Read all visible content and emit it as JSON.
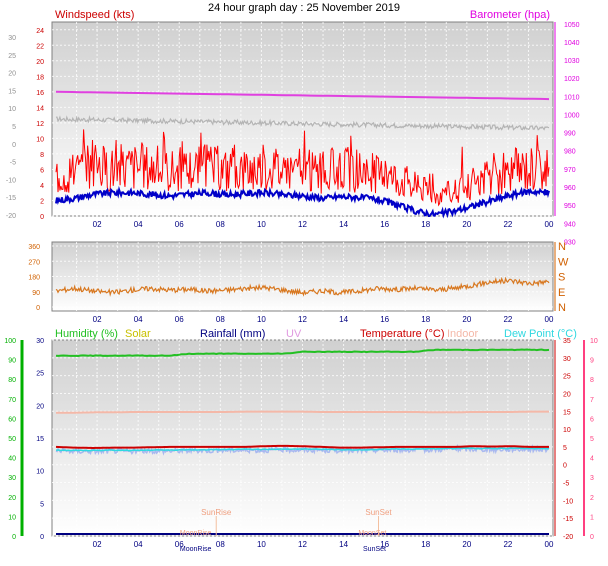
{
  "page_title": "24 hour graph day : 25 November 2019",
  "colors": {
    "windspeed": "#ff0000",
    "gust": "#ff0000",
    "avg_wind": "#0000c8",
    "barometer": "#e040e0",
    "temp_grey": "#b4b4b4",
    "winddir": "#d87820",
    "humidity": "#22c022",
    "solar": "#c8c000",
    "rainfall": "#000080",
    "uv": "#e09ae0",
    "temperature": "#cc0000",
    "indoor": "#f4b8a8",
    "dewpoint": "#30d8e0",
    "dew_band": "#a8b8f0",
    "left_axis_red": "#cc0000",
    "left_axis_green": "#00b000",
    "right_axis_magenta": "#e000e0",
    "right_axis_pink": "#ff4080",
    "dir_axis": "#d06000",
    "plot_bg": "#dcdcdc"
  },
  "chart_data": [
    {
      "type": "line",
      "title": "Windspeed (kts)",
      "right_title": "Barometer (hpa)",
      "x_ticks": [
        "02",
        "04",
        "06",
        "08",
        "10",
        "12",
        "14",
        "16",
        "18",
        "20",
        "22",
        "00"
      ],
      "left_outer_ticks": [
        "30",
        "25",
        "20",
        "15",
        "10",
        "5",
        "0",
        "-5",
        "-10",
        "-15",
        "-20"
      ],
      "left_inner_ticks": [
        "24",
        "22",
        "20",
        "18",
        "16",
        "14",
        "12",
        "10",
        "8",
        "6",
        "4",
        "2",
        "0"
      ],
      "right_ticks": [
        "1050",
        "1040",
        "1030",
        "1020",
        "1010",
        "1000",
        "990",
        "980",
        "970",
        "960",
        "950",
        "940",
        "930"
      ],
      "ylim_wind": [
        0,
        25
      ],
      "ylim_baro": [
        944,
        1051
      ],
      "series": [
        {
          "key": "gust",
          "values": [
            6,
            6.5,
            7,
            6.8,
            7.2,
            7,
            6.5,
            6.8,
            7,
            6.6,
            6.8,
            7,
            6.9,
            6.5,
            6.2,
            6.8,
            6.5,
            6,
            5.5,
            4.5,
            3,
            3.5,
            4.5,
            5.5,
            6.5,
            7,
            6.5
          ]
        },
        {
          "key": "wind",
          "values": [
            2,
            2.3,
            2.8,
            3,
            3,
            2.8,
            2.6,
            2.8,
            3,
            2.7,
            2.9,
            3,
            2.7,
            2.6,
            2.3,
            2.5,
            2.4,
            2.1,
            1.4,
            0.6,
            0.2,
            0.6,
            1.3,
            2,
            2.7,
            3.2,
            3
          ]
        },
        {
          "key": "baro",
          "x": [
            0,
            24
          ],
          "values": [
            1012.5,
            1008.5
          ]
        },
        {
          "key": "grey",
          "values": [
            -2.5,
            -2.3,
            -2.4,
            -2.5,
            -2.6,
            -2.7,
            -2.6,
            -2.8,
            -2.7,
            -2.7,
            -2.8,
            -2.8,
            -2.7,
            -2.8,
            -2.7,
            -2.6,
            -2.6,
            -2.5,
            -2.5,
            -2.4,
            -2.6,
            -2.9,
            -3.0,
            -3.1,
            -3.2,
            -3.3,
            -3.3
          ]
        }
      ]
    },
    {
      "type": "line",
      "title": "",
      "x_ticks": [
        "02",
        "04",
        "06",
        "08",
        "10",
        "12",
        "14",
        "16",
        "18",
        "20",
        "22",
        "00"
      ],
      "left_ticks": [
        "360",
        "270",
        "180",
        "90",
        "0"
      ],
      "right_ticks": [
        "N",
        "W",
        "S",
        "E",
        "N"
      ],
      "ylim": [
        0,
        360
      ],
      "series": [
        {
          "key": "winddir",
          "values": [
            95,
            110,
            95,
            85,
            100,
            110,
            100,
            105,
            95,
            100,
            110,
            115,
            100,
            85,
            95,
            85,
            95,
            110,
            105,
            110,
            100,
            110,
            130,
            150,
            155,
            140,
            150
          ]
        }
      ]
    },
    {
      "type": "line",
      "legend": [
        "Humidity (%)",
        "Solar",
        "Rainfall (mm)",
        "UV",
        "Temperature (°C)",
        "Indoor",
        "Dew Point (°C)"
      ],
      "x_ticks": [
        "02",
        "04",
        "06",
        "08",
        "10",
        "12",
        "14",
        "16",
        "18",
        "20",
        "22",
        "00"
      ],
      "left_ticks_green": [
        "100",
        "90",
        "80",
        "70",
        "60",
        "50",
        "40",
        "30",
        "20",
        "10",
        "0"
      ],
      "left_ticks_blue": [
        "30",
        "25",
        "20",
        "15",
        "10",
        "5",
        "0"
      ],
      "right_ticks_temp": [
        "35",
        "30",
        "25",
        "20",
        "15",
        "10",
        "5",
        "0",
        "-5",
        "-10",
        "-15",
        "-20"
      ],
      "right_ticks_uv": [
        "10",
        "9",
        "8",
        "7",
        "6",
        "5",
        "4",
        "3",
        "2",
        "1",
        "0"
      ],
      "ylim_temp": [
        -20,
        35
      ],
      "series": [
        {
          "key": "humidity",
          "values": [
            92,
            92,
            92,
            92,
            92,
            92,
            92,
            93,
            93,
            93,
            93,
            93,
            93,
            94,
            94,
            94,
            94,
            94,
            94,
            94,
            95,
            95,
            95,
            95,
            95,
            95,
            95
          ]
        },
        {
          "key": "temperature",
          "values": [
            5,
            4.8,
            4.7,
            4.8,
            4.8,
            4.9,
            5,
            5,
            5,
            5,
            5,
            5.2,
            5.3,
            5.2,
            5,
            4.8,
            4.8,
            4.9,
            5,
            5,
            5,
            5,
            5.2,
            5.1,
            5.2,
            5,
            5
          ]
        },
        {
          "key": "indoor",
          "values": [
            14.6,
            14.6,
            14.7,
            14.7,
            14.8,
            14.8,
            14.8,
            14.8,
            14.8,
            14.8,
            14.9,
            14.9,
            14.9,
            14.9,
            14.8,
            14.8,
            14.8,
            14.8,
            14.8,
            14.8,
            14.7,
            14.7,
            14.8,
            14.8,
            14.8,
            14.9,
            14.9
          ]
        },
        {
          "key": "dewpoint",
          "values": [
            4.1,
            4,
            4,
            4.1,
            4,
            4.1,
            4.1,
            4.2,
            4.2,
            4.3,
            4.3,
            4.3,
            4.4,
            4.4,
            4.3,
            4.2,
            4.2,
            4.3,
            4.4,
            4.4,
            4.5,
            4.6,
            4.6,
            4.5,
            4.6,
            4.6,
            4.5
          ]
        }
      ],
      "annotations": {
        "sunrise": "SunRise",
        "sunset": "SunSet",
        "moonrise": "MoonRise",
        "moonset": "MoonSet"
      }
    }
  ]
}
